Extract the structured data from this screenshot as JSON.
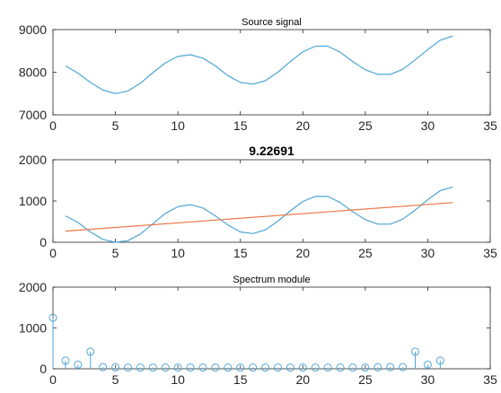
{
  "figure": {
    "background": "#ffffff",
    "axes_color": "#262626",
    "grid": false
  },
  "chart_data": [
    {
      "type": "line",
      "title": "Source signal",
      "title_bold": false,
      "xlim": [
        0,
        35
      ],
      "ylim": [
        7000,
        9000
      ],
      "xticks": [
        0,
        5,
        10,
        15,
        20,
        25,
        30,
        35
      ],
      "yticks": [
        7000,
        8000,
        9000
      ],
      "series": [
        {
          "color": "#4DA6D6",
          "x": [
            1,
            2,
            3,
            4,
            5,
            6,
            7,
            8,
            9,
            10,
            11,
            12,
            13,
            14,
            15,
            16,
            17,
            18,
            19,
            20,
            21,
            22,
            23,
            24,
            25,
            26,
            27,
            28,
            29,
            30,
            31,
            32
          ],
          "y": [
            8150,
            7980,
            7760,
            7580,
            7500,
            7560,
            7740,
            7990,
            8220,
            8370,
            8410,
            8330,
            8150,
            7920,
            7760,
            7720,
            7800,
            8000,
            8250,
            8480,
            8610,
            8610,
            8470,
            8250,
            8060,
            7950,
            7950,
            8070,
            8290,
            8530,
            8750,
            8850
          ]
        }
      ]
    },
    {
      "type": "line",
      "title": "9.22691",
      "title_bold": true,
      "xlim": [
        0,
        35
      ],
      "ylim": [
        0,
        2000
      ],
      "xticks": [
        0,
        5,
        10,
        15,
        20,
        25,
        30,
        35
      ],
      "yticks": [
        0,
        1000,
        2000
      ],
      "series": [
        {
          "color": "#4DA6D6",
          "x": [
            1,
            2,
            3,
            4,
            5,
            6,
            7,
            8,
            9,
            10,
            11,
            12,
            13,
            14,
            15,
            16,
            17,
            18,
            19,
            20,
            21,
            22,
            23,
            24,
            25,
            26,
            27,
            28,
            29,
            30,
            31,
            32
          ],
          "y": [
            640,
            480,
            250,
            70,
            0,
            40,
            200,
            450,
            700,
            860,
            910,
            830,
            640,
            420,
            250,
            210,
            300,
            510,
            760,
            990,
            1110,
            1110,
            960,
            740,
            550,
            440,
            440,
            560,
            780,
            1030,
            1250,
            1340
          ]
        },
        {
          "color": "#E8784A",
          "x": [
            1,
            32
          ],
          "y": [
            270,
            960
          ]
        }
      ]
    },
    {
      "type": "stem",
      "title": "Spectrum module",
      "title_bold": false,
      "xlim": [
        0,
        35
      ],
      "ylim": [
        0,
        2000
      ],
      "xticks": [
        0,
        5,
        10,
        15,
        20,
        25,
        30,
        35
      ],
      "yticks": [
        0,
        1000,
        2000
      ],
      "series": [
        {
          "color": "#4DA6D6",
          "x": [
            0,
            1,
            2,
            3,
            4,
            5,
            6,
            7,
            8,
            9,
            10,
            11,
            12,
            13,
            14,
            15,
            16,
            17,
            18,
            19,
            20,
            21,
            22,
            23,
            24,
            25,
            26,
            27,
            28,
            29,
            30,
            31
          ],
          "y": [
            1250,
            200,
            100,
            420,
            40,
            35,
            30,
            30,
            30,
            30,
            30,
            30,
            30,
            30,
            30,
            30,
            30,
            30,
            30,
            30,
            30,
            30,
            30,
            30,
            30,
            30,
            35,
            40,
            40,
            420,
            100,
            200
          ]
        }
      ]
    }
  ]
}
